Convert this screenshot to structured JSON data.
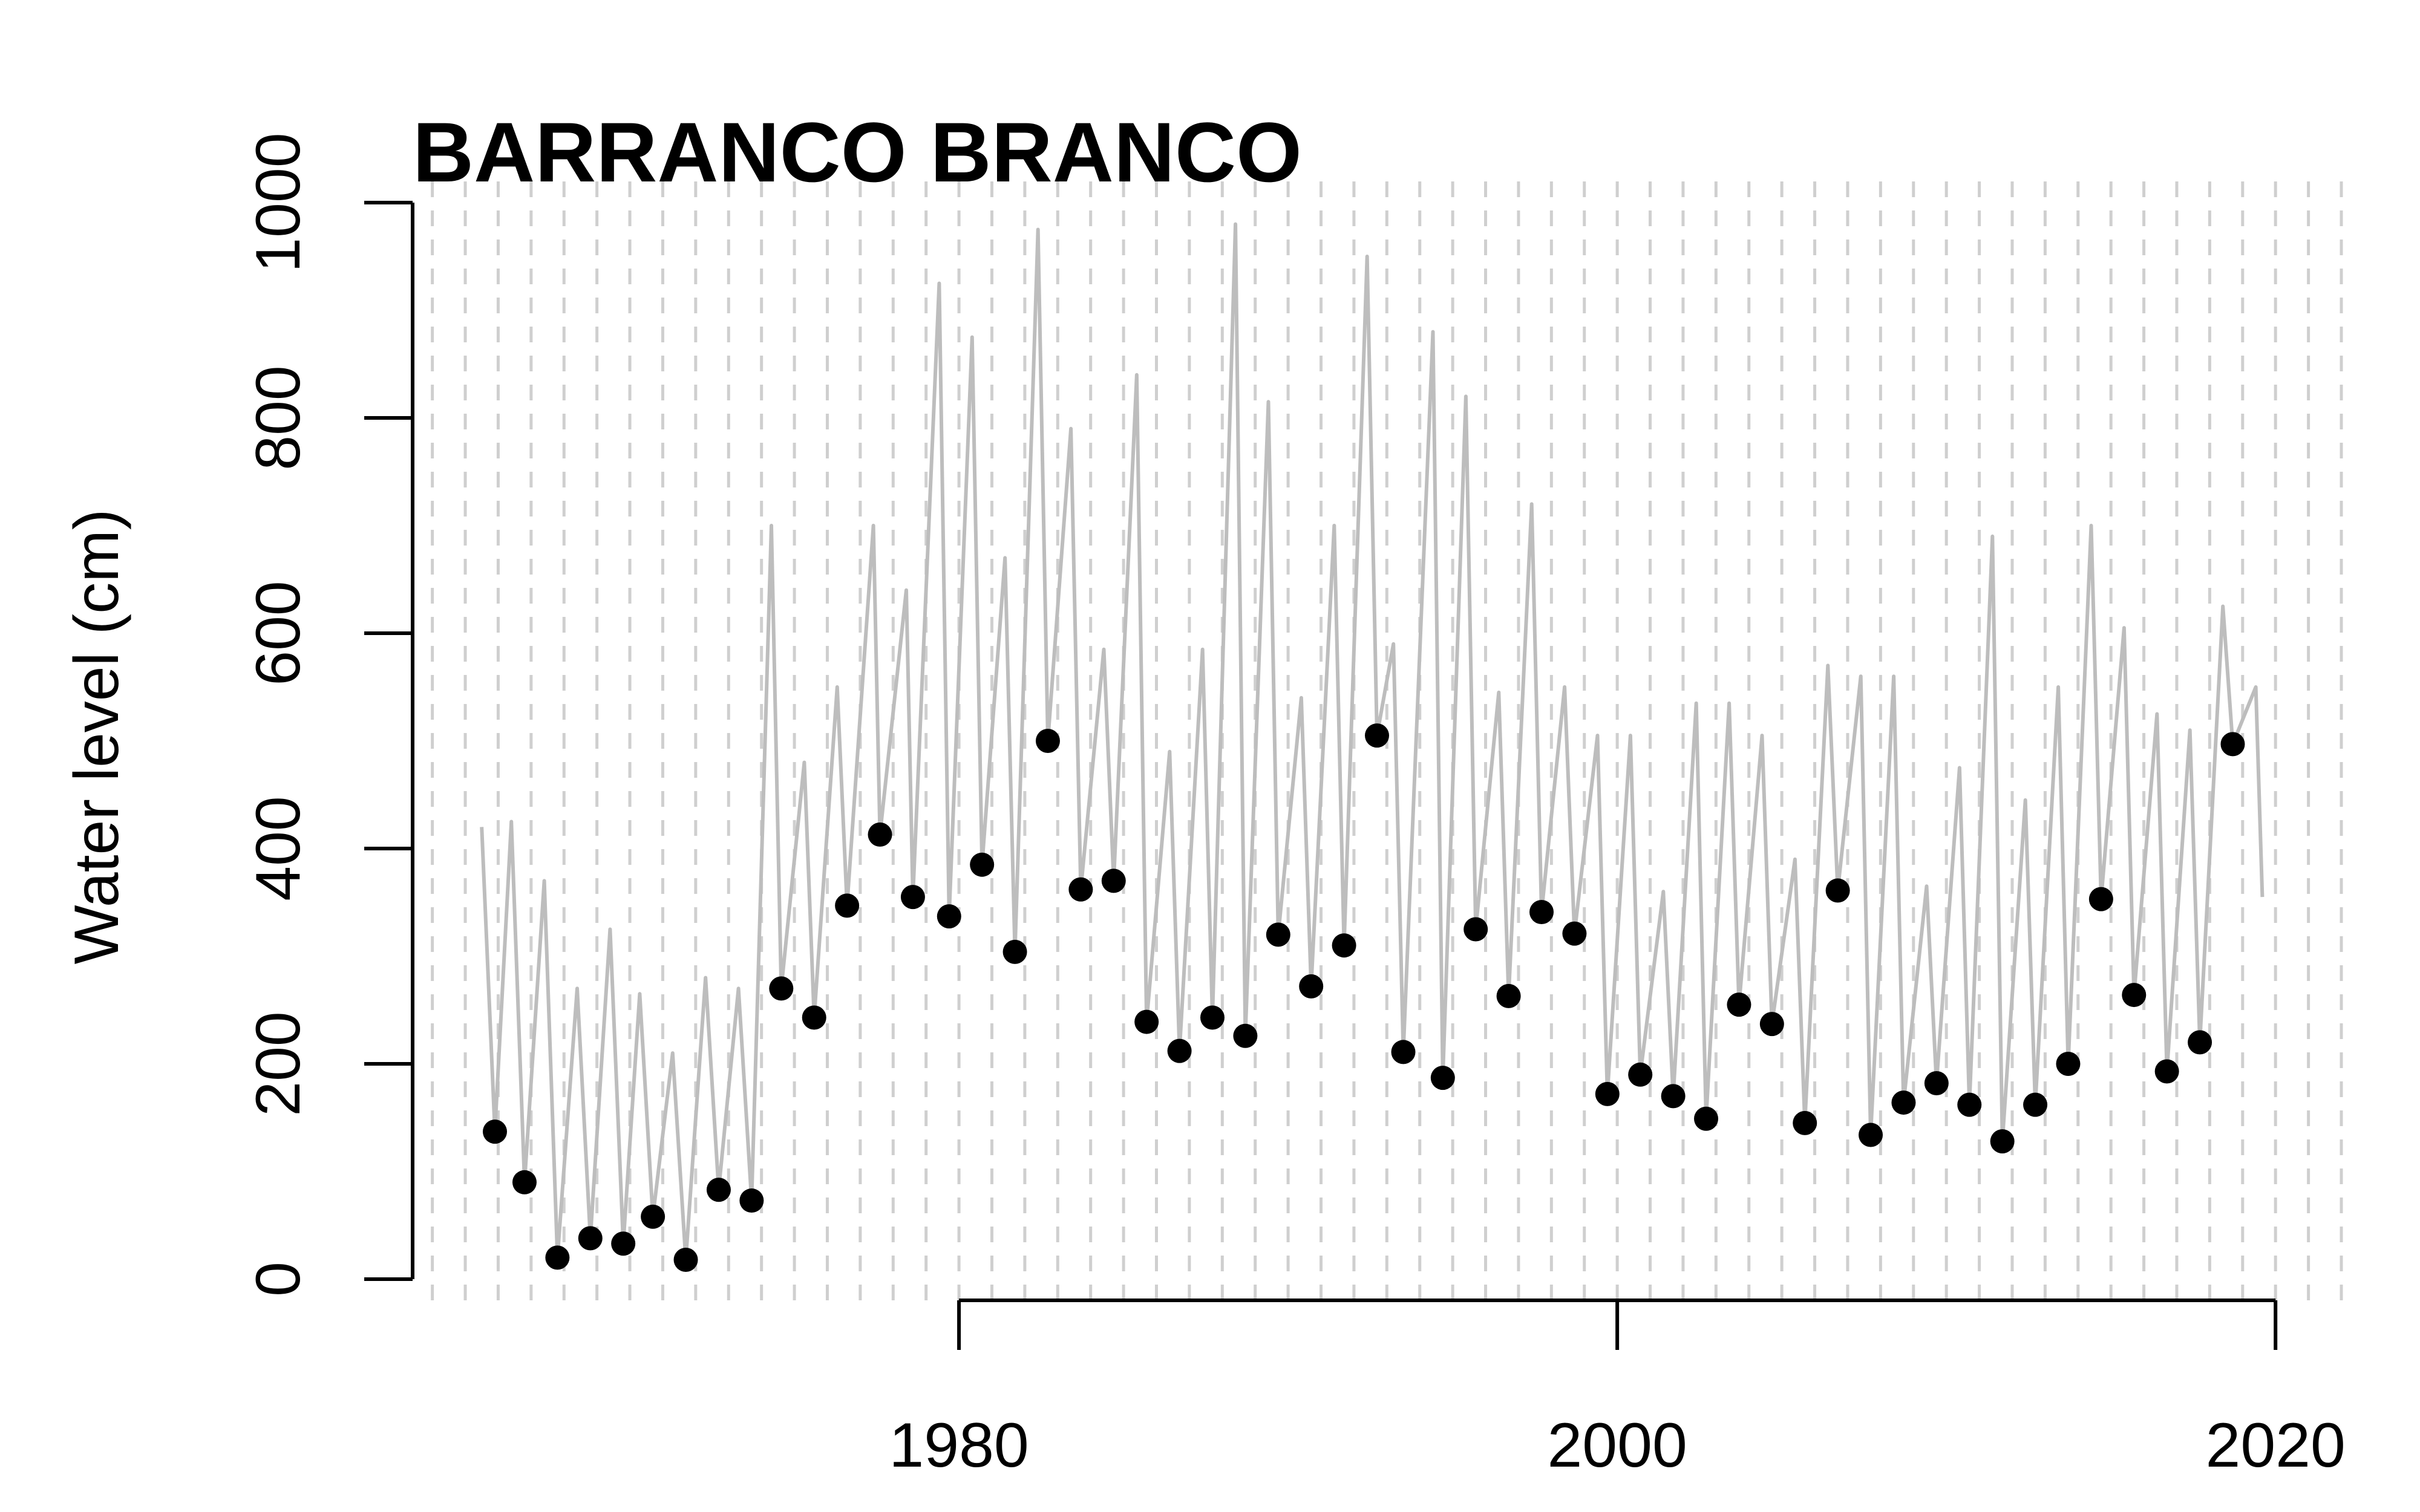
{
  "chart_data": {
    "type": "line",
    "title": "BARRANCO BRANCO",
    "xlabel": "",
    "ylabel": "Water level (cm)",
    "xlim": [
      1963.4,
      2022.0
    ],
    "ylim": [
      0,
      1000
    ],
    "x_ticks": [
      1980,
      2000,
      2020
    ],
    "x_tick_labels": [
      "1980",
      "2000",
      "2020"
    ],
    "y_ticks": [
      0,
      200,
      400,
      600,
      800,
      1000
    ],
    "y_tick_labels": [
      "0",
      "200",
      "400",
      "600",
      "800",
      "1000"
    ],
    "grid": "vertical dashed lines at annual intervals",
    "series": [
      {
        "style": "gray line",
        "x": [
          1965.5,
          1965.9,
          1966.4,
          1966.8,
          1967.4,
          1967.8,
          1968.4,
          1968.8,
          1969.4,
          1969.8,
          1970.3,
          1970.7,
          1971.3,
          1971.7,
          1972.3,
          1972.7,
          1973.3,
          1973.7,
          1974.3,
          1974.6,
          1975.3,
          1975.6,
          1976.3,
          1976.6,
          1977.4,
          1977.6,
          1978.4,
          1978.6,
          1979.4,
          1979.7,
          1980.4,
          1980.7,
          1981.4,
          1981.7,
          1982.4,
          1982.7,
          1983.4,
          1983.7,
          1984.4,
          1984.7,
          1985.4,
          1985.7,
          1986.4,
          1986.7,
          1987.4,
          1987.7,
          1988.4,
          1988.7,
          1989.4,
          1989.7,
          1990.4,
          1990.7,
          1991.4,
          1991.7,
          1992.4,
          1992.7,
          1993.2,
          1993.5,
          1994.4,
          1994.7,
          1995.4,
          1995.7,
          1996.4,
          1996.7,
          1997.4,
          1997.7,
          1998.4,
          1998.7,
          1999.4,
          1999.7,
          2000.4,
          2000.7,
          2001.4,
          2001.7,
          2002.4,
          2002.7,
          2003.4,
          2003.7,
          2004.4,
          2004.7,
          2005.4,
          2005.7,
          2006.4,
          2006.7,
          2007.4,
          2007.7,
          2008.4,
          2008.7,
          2009.4,
          2009.7,
          2010.4,
          2010.7,
          2011.4,
          2011.7,
          2012.4,
          2012.7,
          2013.4,
          2013.7,
          2014.4,
          2014.7,
          2015.4,
          2015.7,
          2016.4,
          2016.7,
          2017.4,
          2017.7,
          2018.4,
          2018.7,
          2019.4,
          2019.6
        ],
        "y": [
          420,
          137,
          425,
          90,
          370,
          20,
          270,
          38,
          325,
          33,
          265,
          58,
          210,
          18,
          280,
          83,
          270,
          73,
          700,
          270,
          480,
          243,
          550,
          347,
          700,
          413,
          640,
          355,
          925,
          337,
          875,
          385,
          670,
          304,
          975,
          500,
          790,
          362,
          585,
          370,
          840,
          239,
          490,
          212,
          585,
          243,
          980,
          226,
          815,
          320,
          540,
          272,
          700,
          310,
          950,
          505,
          590,
          211,
          880,
          187,
          820,
          325,
          545,
          263,
          720,
          341,
          550,
          321,
          505,
          172,
          505,
          190,
          360,
          170,
          535,
          149,
          535,
          255,
          505,
          237,
          390,
          145,
          570,
          361,
          560,
          134,
          560,
          164,
          365,
          182,
          475,
          162,
          690,
          128,
          445,
          162,
          550,
          200,
          700,
          353,
          605,
          264,
          525,
          193,
          510,
          220,
          625,
          497,
          550,
          355
        ]
      },
      {
        "name": "",
        "style": "black points",
        "x": [
          1965.9,
          1966.8,
          1967.8,
          1968.8,
          1969.8,
          1970.7,
          1971.7,
          1972.7,
          1973.7,
          1974.6,
          1975.6,
          1976.6,
          1977.6,
          1978.6,
          1979.7,
          1980.7,
          1981.7,
          1982.7,
          1983.7,
          1984.7,
          1985.7,
          1986.7,
          1987.7,
          1988.7,
          1989.7,
          1990.7,
          1991.7,
          1992.7,
          1993.5,
          1994.7,
          1995.7,
          1996.7,
          1997.7,
          1998.7,
          1999.7,
          2000.7,
          2001.7,
          2002.7,
          2003.7,
          2004.7,
          2005.7,
          2006.7,
          2007.7,
          2008.7,
          2009.7,
          2010.7,
          2011.7,
          2012.7,
          2013.7,
          2014.7,
          2015.7,
          2016.7,
          2017.7,
          2018.7
        ],
        "y": [
          137,
          90,
          20,
          38,
          33,
          58,
          18,
          83,
          73,
          270,
          243,
          347,
          413,
          355,
          337,
          385,
          304,
          500,
          362,
          370,
          239,
          212,
          243,
          226,
          320,
          272,
          310,
          505,
          211,
          187,
          325,
          263,
          341,
          321,
          172,
          190,
          170,
          149,
          255,
          237,
          145,
          361,
          134,
          164,
          182,
          162,
          128,
          162,
          200,
          353,
          264,
          193,
          220,
          497
        ]
      }
    ]
  }
}
